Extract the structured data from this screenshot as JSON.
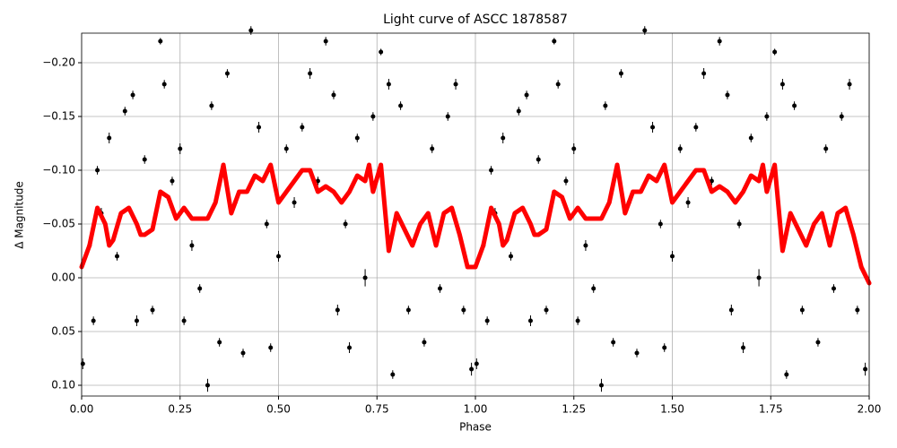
{
  "chart_data": {
    "type": "scatter",
    "title": "Light curve of ASCC 1878587",
    "x_label": "Phase",
    "y_label": "Δ Magnitude",
    "xlim": [
      0,
      2
    ],
    "ylim": [
      -0.2275,
      0.11
    ],
    "y_inverted": true,
    "grid": true,
    "xticks": [
      {
        "value": 0,
        "label": "0.00"
      },
      {
        "value": 0.25,
        "label": "0.25"
      },
      {
        "value": 0.5,
        "label": "0.50"
      },
      {
        "value": 0.75,
        "label": "0.75"
      },
      {
        "value": 1,
        "label": "1.00"
      },
      {
        "value": 1.25,
        "label": "1.25"
      },
      {
        "value": 1.5,
        "label": "1.50"
      },
      {
        "value": 1.75,
        "label": "1.75"
      },
      {
        "value": 2,
        "label": "2.00"
      }
    ],
    "yticks": [
      {
        "value": -0.2,
        "label": "−0.20"
      },
      {
        "value": -0.15,
        "label": "−0.15"
      },
      {
        "value": -0.1,
        "label": "−0.10"
      },
      {
        "value": -0.05,
        "label": "−0.05"
      },
      {
        "value": 0,
        "label": "0.00"
      },
      {
        "value": 0.05,
        "label": "0.05"
      },
      {
        "value": 0.1,
        "label": "0.10"
      }
    ],
    "series": [
      {
        "type": "errorbar",
        "color": "#000000",
        "x": [
          0.003,
          0.02,
          0.03,
          0.04,
          0.05,
          0.07,
          0.09,
          0.11,
          0.13,
          0.14,
          0.16,
          0.18,
          0.2,
          0.21,
          0.23,
          0.25,
          0.26,
          0.28,
          0.3,
          0.32,
          0.33,
          0.35,
          0.37,
          0.39,
          0.41,
          0.43,
          0.45,
          0.47,
          0.48,
          0.5,
          0.52,
          0.54,
          0.56,
          0.58,
          0.6,
          0.62,
          0.64,
          0.65,
          0.67,
          0.68,
          0.7,
          0.72,
          0.74,
          0.76,
          0.78,
          0.79,
          0.81,
          0.83,
          0.85,
          0.87,
          0.89,
          0.91,
          0.93,
          0.95,
          0.97,
          0.99,
          1.003,
          1.02,
          1.03,
          1.04,
          1.05,
          1.07,
          1.09,
          1.11,
          1.13,
          1.14,
          1.16,
          1.18,
          1.2,
          1.21,
          1.23,
          1.25,
          1.26,
          1.28,
          1.3,
          1.32,
          1.33,
          1.35,
          1.37,
          1.39,
          1.41,
          1.43,
          1.45,
          1.47,
          1.48,
          1.5,
          1.52,
          1.54,
          1.56,
          1.58,
          1.6,
          1.62,
          1.64,
          1.65,
          1.67,
          1.68,
          1.7,
          1.72,
          1.74,
          1.76,
          1.78,
          1.79,
          1.81,
          1.83,
          1.85,
          1.87,
          1.89,
          1.91,
          1.93,
          1.95,
          1.97,
          1.99
        ],
        "values": [
          0.08,
          -0.03,
          0.04,
          -0.1,
          -0.06,
          -0.13,
          -0.02,
          -0.155,
          -0.17,
          0.04,
          -0.11,
          0.03,
          -0.22,
          -0.18,
          -0.09,
          -0.12,
          0.04,
          -0.03,
          0.01,
          0.1,
          -0.16,
          0.06,
          -0.19,
          -0.07,
          0.07,
          -0.23,
          -0.14,
          -0.05,
          0.065,
          -0.02,
          -0.12,
          -0.07,
          -0.14,
          -0.19,
          -0.09,
          -0.22,
          -0.17,
          0.03,
          -0.05,
          0.065,
          -0.13,
          0,
          -0.15,
          -0.21,
          -0.18,
          0.09,
          -0.16,
          0.03,
          -0.04,
          0.06,
          -0.12,
          0.01,
          -0.15,
          -0.18,
          0.03,
          0.085,
          0.08,
          -0.03,
          0.04,
          -0.1,
          -0.06,
          -0.13,
          -0.02,
          -0.155,
          -0.17,
          0.04,
          -0.11,
          0.03,
          -0.22,
          -0.18,
          -0.09,
          -0.12,
          0.04,
          -0.03,
          0.01,
          0.1,
          -0.16,
          0.06,
          -0.19,
          -0.07,
          0.07,
          -0.23,
          -0.14,
          -0.05,
          0.065,
          -0.02,
          -0.12,
          -0.07,
          -0.14,
          -0.19,
          -0.09,
          -0.22,
          -0.17,
          0.03,
          -0.05,
          0.065,
          -0.13,
          0,
          -0.15,
          -0.21,
          -0.18,
          0.09,
          -0.16,
          0.03,
          -0.04,
          0.06,
          -0.12,
          0.01,
          -0.15,
          -0.18,
          0.03,
          0.085
        ],
        "errors": [
          0.005,
          0.004,
          0.004,
          0.004,
          0.005,
          0.005,
          0.004,
          0.004,
          0.004,
          0.005,
          0.004,
          0.004,
          0.003,
          0.004,
          0.004,
          0.005,
          0.004,
          0.005,
          0.004,
          0.006,
          0.004,
          0.004,
          0.004,
          0.004,
          0.004,
          0.004,
          0.005,
          0.004,
          0.004,
          0.005,
          0.004,
          0.005,
          0.004,
          0.005,
          0.004,
          0.004,
          0.004,
          0.005,
          0.004,
          0.005,
          0.004,
          0.008,
          0.004,
          0.003,
          0.005,
          0.004,
          0.004,
          0.004,
          0.005,
          0.004,
          0.004,
          0.004,
          0.004,
          0.005,
          0.004,
          0.006,
          0.005,
          0.004,
          0.004,
          0.004,
          0.005,
          0.005,
          0.004,
          0.004,
          0.004,
          0.005,
          0.004,
          0.004,
          0.003,
          0.004,
          0.004,
          0.005,
          0.004,
          0.005,
          0.004,
          0.006,
          0.004,
          0.004,
          0.004,
          0.004,
          0.004,
          0.004,
          0.005,
          0.004,
          0.004,
          0.005,
          0.004,
          0.005,
          0.004,
          0.005,
          0.004,
          0.004,
          0.004,
          0.005,
          0.004,
          0.005,
          0.004,
          0.008,
          0.004,
          0.003,
          0.005,
          0.004,
          0.004,
          0.004,
          0.005,
          0.004,
          0.004,
          0.004,
          0.004,
          0.005,
          0.004,
          0.006
        ]
      },
      {
        "type": "line",
        "color": "#ff0000",
        "x": [
          0,
          0.02,
          0.04,
          0.06,
          0.07,
          0.08,
          0.1,
          0.12,
          0.14,
          0.15,
          0.16,
          0.18,
          0.2,
          0.22,
          0.24,
          0.26,
          0.28,
          0.3,
          0.32,
          0.34,
          0.36,
          0.38,
          0.4,
          0.42,
          0.44,
          0.46,
          0.48,
          0.5,
          0.52,
          0.54,
          0.56,
          0.58,
          0.6,
          0.62,
          0.64,
          0.66,
          0.68,
          0.7,
          0.72,
          0.73,
          0.74,
          0.76,
          0.78,
          0.8,
          0.82,
          0.84,
          0.86,
          0.88,
          0.9,
          0.92,
          0.94,
          0.96,
          0.98,
          1,
          1.02,
          1.04,
          1.06,
          1.07,
          1.08,
          1.1,
          1.12,
          1.14,
          1.15,
          1.16,
          1.18,
          1.2,
          1.22,
          1.24,
          1.26,
          1.28,
          1.3,
          1.32,
          1.34,
          1.36,
          1.38,
          1.4,
          1.42,
          1.44,
          1.46,
          1.48,
          1.5,
          1.52,
          1.54,
          1.56,
          1.58,
          1.6,
          1.62,
          1.64,
          1.66,
          1.68,
          1.7,
          1.72,
          1.73,
          1.74,
          1.76,
          1.78,
          1.8,
          1.82,
          1.84,
          1.86,
          1.88,
          1.9,
          1.92,
          1.94,
          1.96,
          1.98,
          2
        ],
        "values": [
          -0.01,
          -0.03,
          -0.065,
          -0.05,
          -0.03,
          -0.035,
          -0.06,
          -0.065,
          -0.05,
          -0.04,
          -0.04,
          -0.045,
          -0.08,
          -0.075,
          -0.055,
          -0.065,
          -0.055,
          -0.055,
          -0.055,
          -0.07,
          -0.105,
          -0.06,
          -0.08,
          -0.08,
          -0.095,
          -0.09,
          -0.105,
          -0.07,
          -0.08,
          -0.09,
          -0.1,
          -0.1,
          -0.08,
          -0.085,
          -0.08,
          -0.07,
          -0.08,
          -0.095,
          -0.09,
          -0.105,
          -0.08,
          -0.105,
          -0.025,
          -0.06,
          -0.045,
          -0.03,
          -0.05,
          -0.06,
          -0.03,
          -0.06,
          -0.065,
          -0.04,
          -0.01,
          -0.01,
          -0.03,
          -0.065,
          -0.05,
          -0.03,
          -0.035,
          -0.06,
          -0.065,
          -0.05,
          -0.04,
          -0.04,
          -0.045,
          -0.08,
          -0.075,
          -0.055,
          -0.065,
          -0.055,
          -0.055,
          -0.055,
          -0.07,
          -0.105,
          -0.06,
          -0.08,
          -0.08,
          -0.095,
          -0.09,
          -0.105,
          -0.07,
          -0.08,
          -0.09,
          -0.1,
          -0.1,
          -0.08,
          -0.085,
          -0.08,
          -0.07,
          -0.08,
          -0.095,
          -0.09,
          -0.105,
          -0.08,
          -0.105,
          -0.025,
          -0.06,
          -0.045,
          -0.03,
          -0.05,
          -0.06,
          -0.03,
          -0.06,
          -0.065,
          -0.04,
          -0.01,
          0.005
        ]
      }
    ]
  }
}
